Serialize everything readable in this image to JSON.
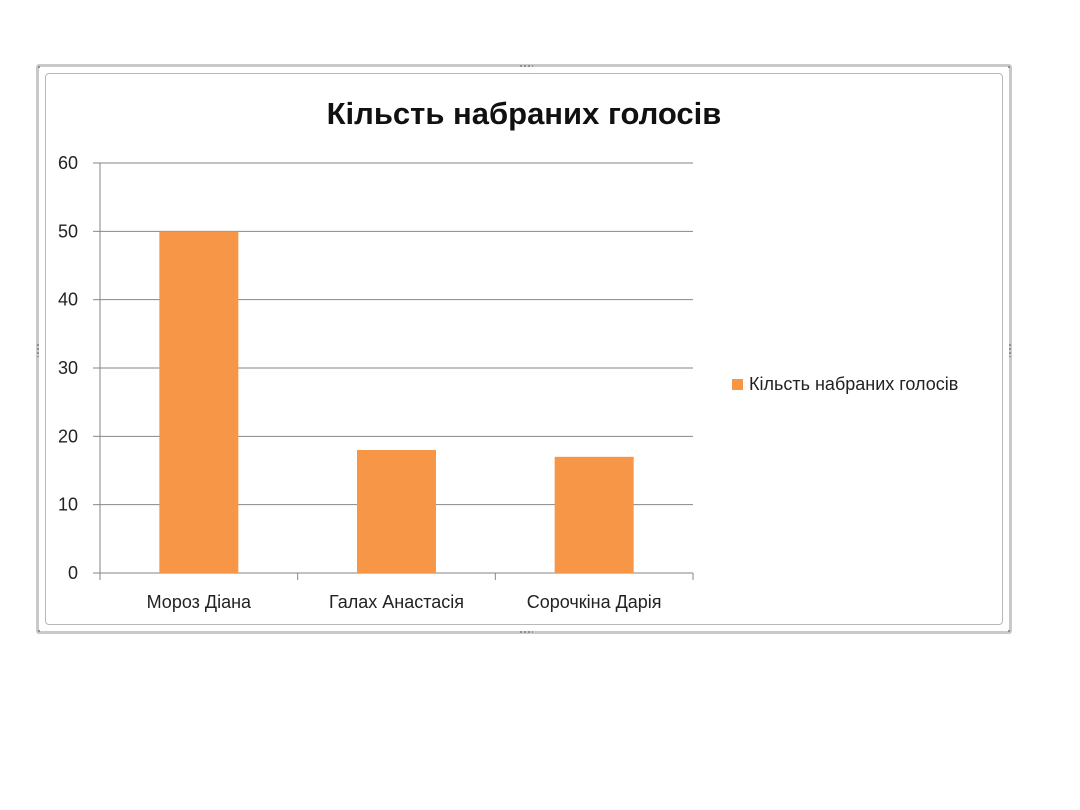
{
  "chart_data": {
    "type": "bar",
    "title": "Кільсть набраних голосів",
    "categories": [
      "Мороз Діана",
      "Галах Анастасія",
      "Сорочкіна Дарія"
    ],
    "series": [
      {
        "name": "Кільсть набраних голосів",
        "values": [
          50,
          18,
          17
        ],
        "color": "#f79646"
      }
    ],
    "ylim": [
      0,
      60
    ],
    "yticks": [
      "0",
      "10",
      "20",
      "30",
      "40",
      "50",
      "60"
    ],
    "grid": true,
    "legend_position": "right"
  },
  "colors": {
    "bar": "#f79646",
    "grid": "#868686",
    "text": "#222222"
  }
}
